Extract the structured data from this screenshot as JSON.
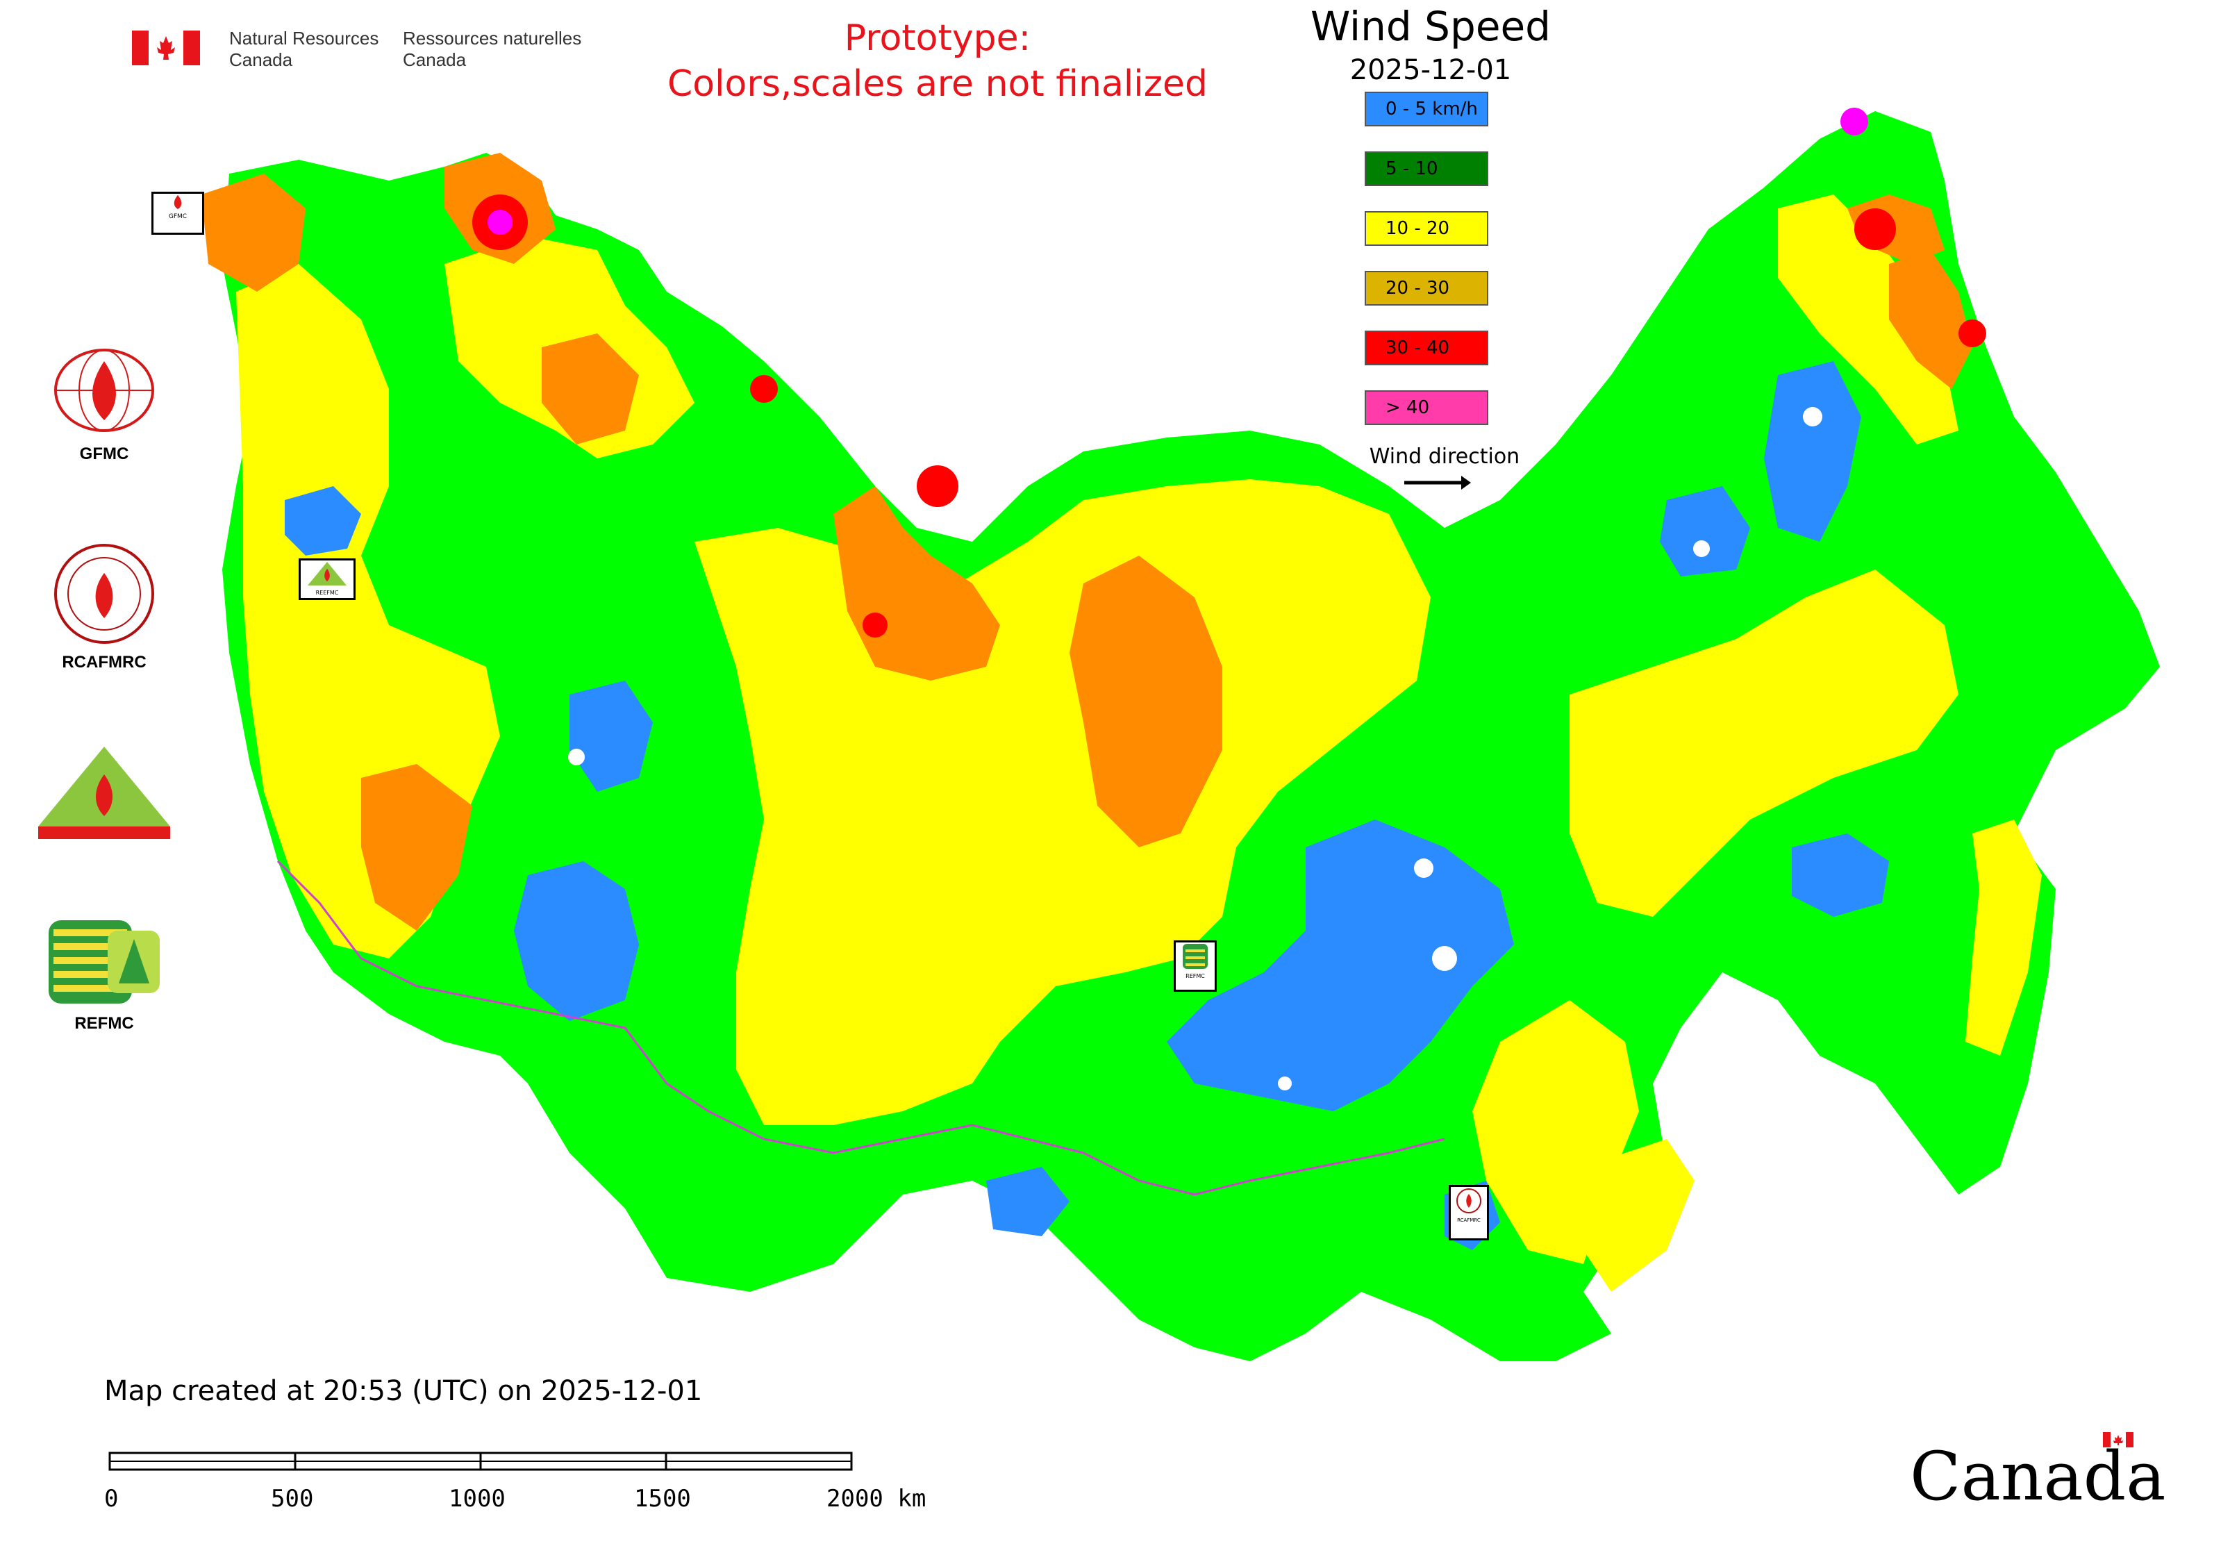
{
  "header": {
    "gov_en_line1": "Natural Resources",
    "gov_en_line2": "Canada",
    "gov_fr_line1": "Ressources naturelles",
    "gov_fr_line2": "Canada",
    "prototype_line1": "Prototype:",
    "prototype_line2": "Colors,scales are not finalized"
  },
  "map": {
    "title": "Wind Speed",
    "date": "2025-12-01",
    "wind_direction_label": "Wind direction"
  },
  "legend": [
    {
      "label": "0 - 5 km/h",
      "color": "#2a8cff"
    },
    {
      "label": "5 - 10",
      "color": "#008000"
    },
    {
      "label": "10 - 20",
      "color": "#ffff00"
    },
    {
      "label": "20 - 30",
      "color": "#dcb400"
    },
    {
      "label": "30 - 40",
      "color": "#ff0000"
    },
    {
      "label": "> 40",
      "color": "#ff3caa"
    }
  ],
  "map_colors": {
    "calm": "#2a8cff",
    "light": "#00ff00",
    "moderate": "#ffff00",
    "fresh": "#ff8c00",
    "strong": "#ff0000",
    "extreme": "#ff00ff",
    "border": "#cc44cc"
  },
  "logos": {
    "gfmc": "GFMC",
    "rcafmrc": "RCAFMRC",
    "reefmc": "REEFMC",
    "refmc": "REFMC",
    "gfmc_small": "GFMC",
    "reefmc_small": "REEFMC",
    "refmc_small": "REFMC",
    "rcafmrc_small": "RCAFMRC"
  },
  "footer": {
    "created": "Map created at 20:53 (UTC) on 2025-12-01",
    "scale_ticks": [
      "0",
      "500",
      "1000",
      "1500",
      "2000 km"
    ],
    "canada_wordmark": "Canada"
  }
}
